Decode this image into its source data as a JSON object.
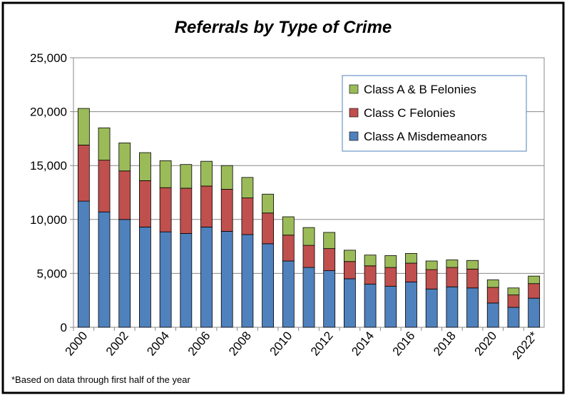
{
  "chart_data": {
    "type": "stacked_bar",
    "title": "Referrals by Type of Crime",
    "note": "*Based on data through first half of the year",
    "categories": [
      "2000",
      null,
      "2002",
      null,
      "2004",
      null,
      "2006",
      null,
      "2008",
      null,
      "2010",
      null,
      "2012",
      null,
      "2014",
      null,
      "2016",
      null,
      "2018",
      null,
      "2020",
      null,
      "2022*"
    ],
    "series": [
      {
        "name": "Class A Misdemeanors",
        "color": "#4f81bd",
        "values": [
          11700,
          10700,
          10000,
          9300,
          8850,
          8700,
          9300,
          8900,
          8600,
          7750,
          6150,
          5550,
          5250,
          4500,
          4000,
          3800,
          4200,
          3550,
          3750,
          3650,
          2250,
          1850,
          2700
        ]
      },
      {
        "name": "Class C Felonies",
        "color": "#c0504d",
        "values": [
          5200,
          4800,
          4500,
          4300,
          4100,
          4200,
          3800,
          3900,
          3400,
          2850,
          2400,
          2050,
          2050,
          1600,
          1700,
          1750,
          1750,
          1800,
          1800,
          1750,
          1450,
          1150,
          1350
        ]
      },
      {
        "name": "Class A & B Felonies",
        "color": "#9bbb59",
        "values": [
          3400,
          3000,
          2600,
          2600,
          2500,
          2200,
          2300,
          2200,
          1900,
          1750,
          1700,
          1650,
          1500,
          1050,
          1000,
          1100,
          900,
          800,
          700,
          800,
          700,
          650,
          700
        ]
      }
    ],
    "ylim": [
      0,
      25000
    ],
    "yticks": [
      0,
      {
        "value": 5000,
        "label": "5,000"
      },
      {
        "value": 10000,
        "label": "10,000"
      },
      {
        "value": 15000,
        "label": "15,000"
      },
      {
        "value": 20000,
        "label": "20,000"
      },
      {
        "value": 25000,
        "label": "25,000"
      }
    ],
    "grid": true,
    "legend": "top-right"
  }
}
